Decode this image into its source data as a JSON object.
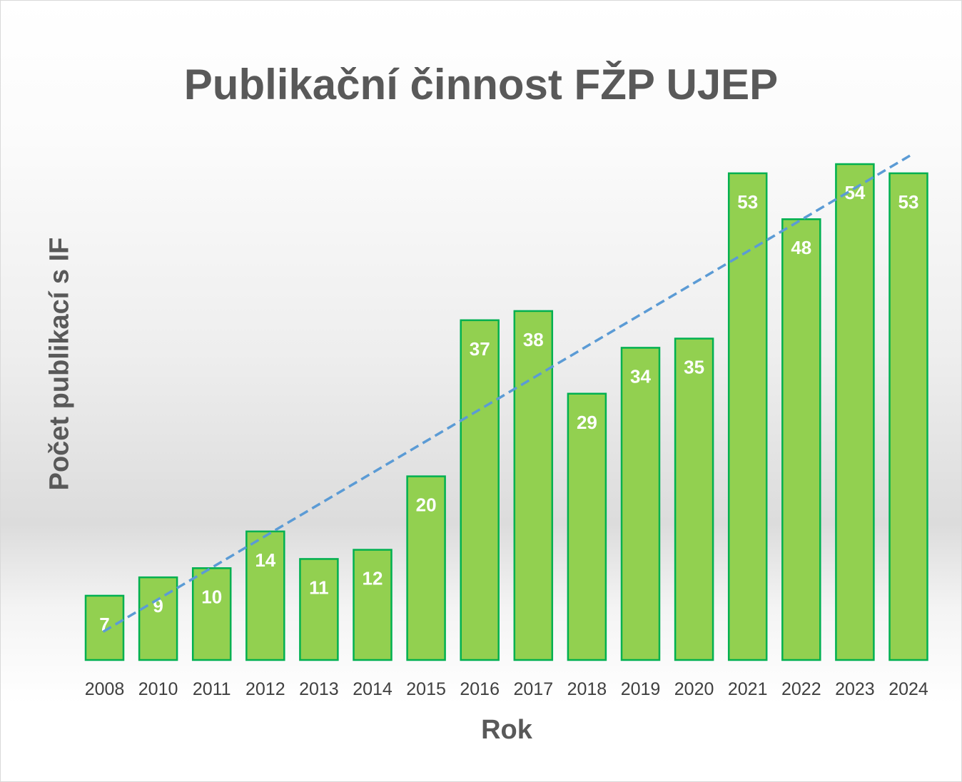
{
  "chart_data": {
    "type": "bar",
    "title": "Publikační činnost FŽP UJEP",
    "xlabel": "Rok",
    "ylabel": "Počet publikací s IF",
    "categories": [
      "2008",
      "2010",
      "2011",
      "2012",
      "2013",
      "2014",
      "2015",
      "2016",
      "2017",
      "2018",
      "2019",
      "2020",
      "2021",
      "2022",
      "2023",
      "2024"
    ],
    "values": [
      7,
      9,
      10,
      14,
      11,
      12,
      20,
      37,
      38,
      29,
      34,
      35,
      53,
      48,
      54,
      53
    ],
    "ylim": [
      0,
      54
    ],
    "data_labels": true,
    "grid": false,
    "legend": "none",
    "trendline": {
      "type": "linear",
      "style": "dashed",
      "color": "#5b9bd5"
    },
    "colors": {
      "bar_fill": "#92d050",
      "bar_border": "#00b050",
      "label": "#ffffff",
      "text": "#595959"
    }
  }
}
